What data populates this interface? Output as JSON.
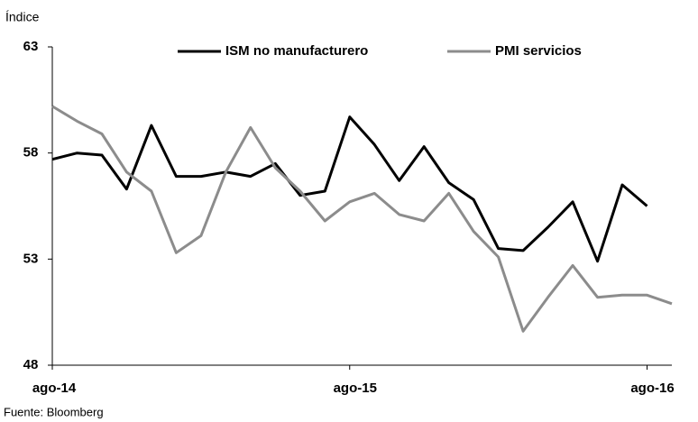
{
  "chart_data": {
    "type": "line",
    "y_label": "Índice",
    "source": "Fuente: Bloomberg",
    "categories": [
      "ago-14",
      null,
      null,
      null,
      null,
      null,
      null,
      null,
      null,
      null,
      null,
      null,
      "ago-15",
      null,
      null,
      null,
      null,
      null,
      null,
      null,
      null,
      null,
      null,
      null,
      "ago-16",
      null
    ],
    "series": [
      {
        "name": "ISM no manufacturero",
        "color": "#000000",
        "values": [
          57.7,
          58.0,
          57.9,
          56.3,
          59.3,
          56.9,
          56.9,
          57.1,
          56.9,
          57.5,
          56.0,
          56.2,
          59.7,
          58.4,
          56.7,
          58.3,
          56.6,
          55.8,
          53.5,
          53.4,
          54.5,
          55.7,
          52.9,
          56.5,
          55.5,
          null
        ]
      },
      {
        "name": "PMI servicios",
        "color": "#8c8c8c",
        "values": [
          60.2,
          59.5,
          58.9,
          57.1,
          56.2,
          53.3,
          54.1,
          57.1,
          59.2,
          57.3,
          56.2,
          54.8,
          55.7,
          56.1,
          55.1,
          54.8,
          56.1,
          54.3,
          53.1,
          49.6,
          51.2,
          52.7,
          51.2,
          51.3,
          51.3,
          50.9
        ]
      }
    ],
    "ylim": [
      48,
      63
    ],
    "yticks": [
      48,
      53,
      58,
      63
    ],
    "grid": false
  }
}
